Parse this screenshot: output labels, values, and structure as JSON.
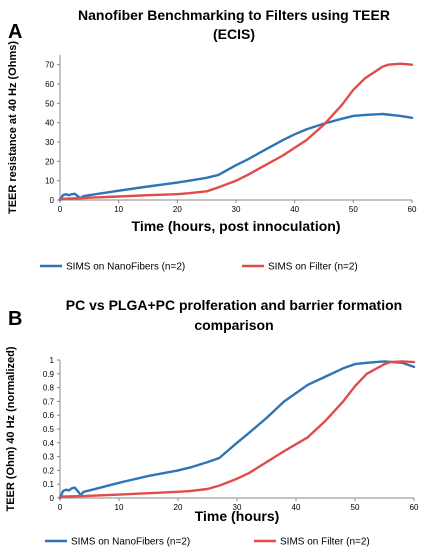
{
  "chart_data": [
    {
      "type": "line",
      "panel_label": "A",
      "title_lines": [
        "Nanofiber Benchmarking to Filters using TEER",
        "(ECIS)"
      ],
      "xlabel": "Time (hours, post innoculation)",
      "ylabel": "TEER resistance at 40 Hz (Ohms)",
      "xlim": [
        0,
        60
      ],
      "ylim": [
        0,
        75
      ],
      "xticks": [
        0,
        10,
        20,
        30,
        40,
        50,
        60
      ],
      "yticks": [
        0,
        10,
        20,
        30,
        40,
        50,
        60,
        70
      ],
      "grid": false,
      "legend_position": "bottom",
      "series": [
        {
          "name": "SIMS on NanoFibers (n=2)",
          "color": "#2e75b6",
          "x": [
            0,
            0.5,
            1,
            1.5,
            2,
            2.5,
            3,
            3.5,
            4,
            5,
            10,
            15,
            20,
            22,
            25,
            27,
            30,
            32,
            35,
            38,
            40,
            42,
            45,
            48,
            50,
            52,
            55,
            58,
            60
          ],
          "y": [
            0,
            2.5,
            3,
            2.5,
            3,
            3.2,
            2,
            1,
            2,
            2.5,
            4.8,
            7,
            9,
            10,
            11.5,
            13,
            18,
            21,
            26,
            31,
            34,
            36.5,
            39.5,
            42,
            43.5,
            44,
            44.5,
            43.5,
            42.5
          ]
        },
        {
          "name": "SIMS on Filter (n=2)",
          "color": "#e04c4c",
          "x": [
            0,
            2,
            4,
            5,
            10,
            15,
            20,
            22,
            25,
            27,
            30,
            32,
            35,
            38,
            40,
            42,
            45,
            48,
            50,
            52,
            55,
            56,
            58,
            60
          ],
          "y": [
            0.5,
            0.8,
            1,
            1.2,
            1.8,
            2.5,
            3,
            3.5,
            4.5,
            6.5,
            10,
            13,
            18,
            23,
            27,
            31,
            39,
            49,
            57,
            63,
            69,
            70,
            70.5,
            70
          ]
        }
      ]
    },
    {
      "type": "line",
      "panel_label": "B",
      "title_lines": [
        "PC vs PLGA+PC prolferation and barrier formation",
        "comparison"
      ],
      "xlabel": "Time (hours)",
      "ylabel": "TEER (Ohm) 40 Hz (normalized)",
      "xlim": [
        0,
        60
      ],
      "ylim": [
        0,
        1
      ],
      "xticks": [
        0,
        10,
        20,
        30,
        40,
        50,
        60
      ],
      "yticks": [
        0,
        0.1,
        0.2,
        0.3,
        0.4,
        0.5,
        0.6,
        0.7,
        0.8,
        0.9,
        1
      ],
      "ytick_labels": [
        "0",
        "0.1",
        "0.2",
        "0.3",
        "0.4",
        "0.5",
        "0.6",
        "0.7",
        "0.8",
        "0.9",
        "1"
      ],
      "grid": false,
      "legend_position": "bottom",
      "series": [
        {
          "name": "SIMS on NanoFibers (n=2)",
          "color": "#2e75b6",
          "x": [
            0,
            0.5,
            1,
            1.5,
            2,
            2.5,
            3,
            3.5,
            4,
            5,
            10,
            15,
            20,
            22,
            25,
            27,
            30,
            32,
            35,
            38,
            40,
            42,
            45,
            48,
            50,
            52,
            55,
            58,
            60
          ],
          "y": [
            0,
            0.05,
            0.06,
            0.055,
            0.07,
            0.075,
            0.05,
            0.02,
            0.045,
            0.055,
            0.11,
            0.16,
            0.2,
            0.22,
            0.26,
            0.29,
            0.4,
            0.47,
            0.58,
            0.7,
            0.76,
            0.82,
            0.88,
            0.94,
            0.97,
            0.98,
            0.99,
            0.98,
            0.95
          ]
        },
        {
          "name": "SIMS on Filter (n=2)",
          "color": "#e04c4c",
          "x": [
            0,
            2,
            4,
            5,
            10,
            15,
            20,
            22,
            25,
            27,
            30,
            32,
            35,
            38,
            40,
            42,
            45,
            48,
            50,
            52,
            55,
            56,
            58,
            60
          ],
          "y": [
            0.01,
            0.012,
            0.014,
            0.016,
            0.025,
            0.035,
            0.045,
            0.05,
            0.065,
            0.09,
            0.14,
            0.18,
            0.26,
            0.34,
            0.39,
            0.44,
            0.56,
            0.7,
            0.81,
            0.9,
            0.97,
            0.985,
            0.99,
            0.985
          ]
        }
      ]
    }
  ]
}
